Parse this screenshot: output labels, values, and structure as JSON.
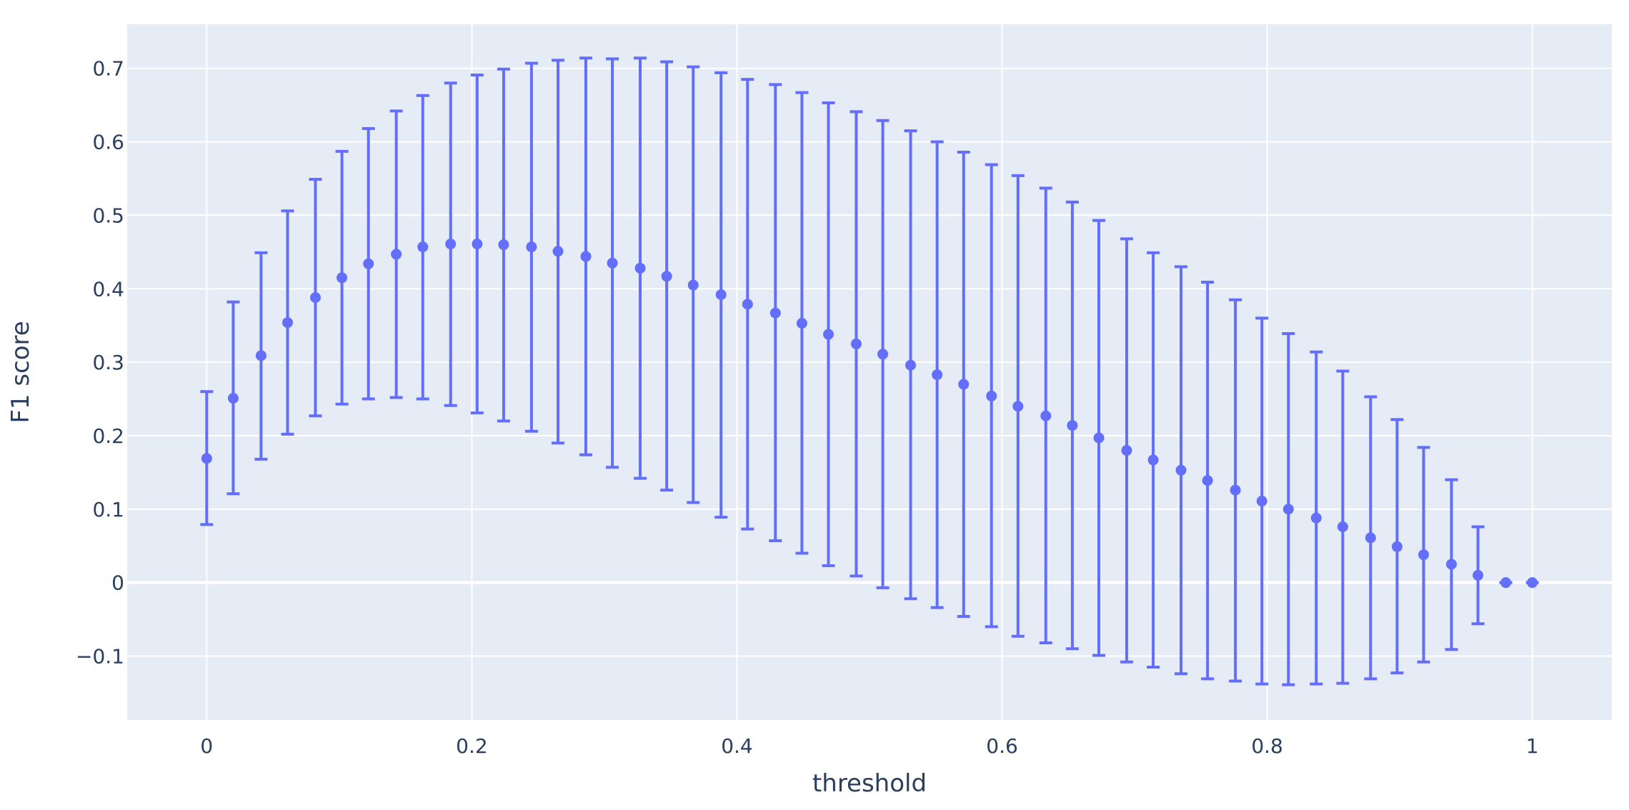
{
  "chart_data": {
    "type": "scatter",
    "title": "",
    "xlabel": "threshold",
    "ylabel": "F1 score",
    "xlim": [
      -0.06,
      1.06
    ],
    "ylim": [
      -0.187,
      0.76
    ],
    "x_ticks": [
      0,
      0.2,
      0.4,
      0.6,
      0.8,
      1
    ],
    "x_tick_labels": [
      "0",
      "0.2",
      "0.4",
      "0.6",
      "0.8",
      "1"
    ],
    "y_ticks": [
      -0.1,
      0,
      0.1,
      0.2,
      0.3,
      0.4,
      0.5,
      0.6,
      0.7
    ],
    "y_tick_labels": [
      "−0.1",
      "0",
      "0.1",
      "0.2",
      "0.3",
      "0.4",
      "0.5",
      "0.6",
      "0.7"
    ],
    "grid": true,
    "colors": {
      "plot_bg": "#e5ecf6",
      "grid": "#ffffff",
      "marker": "#636efa",
      "text": "#2a3f5f"
    },
    "points": [
      {
        "x": 0.0,
        "y": 0.169,
        "lo": 0.079,
        "hi": 0.26
      },
      {
        "x": 0.02,
        "y": 0.251,
        "lo": 0.121,
        "hi": 0.382
      },
      {
        "x": 0.041,
        "y": 0.309,
        "lo": 0.168,
        "hi": 0.449
      },
      {
        "x": 0.061,
        "y": 0.354,
        "lo": 0.202,
        "hi": 0.506
      },
      {
        "x": 0.082,
        "y": 0.388,
        "lo": 0.227,
        "hi": 0.549
      },
      {
        "x": 0.102,
        "y": 0.415,
        "lo": 0.243,
        "hi": 0.587
      },
      {
        "x": 0.122,
        "y": 0.434,
        "lo": 0.25,
        "hi": 0.618
      },
      {
        "x": 0.143,
        "y": 0.447,
        "lo": 0.252,
        "hi": 0.642
      },
      {
        "x": 0.163,
        "y": 0.457,
        "lo": 0.25,
        "hi": 0.663
      },
      {
        "x": 0.184,
        "y": 0.461,
        "lo": 0.241,
        "hi": 0.68
      },
      {
        "x": 0.204,
        "y": 0.461,
        "lo": 0.231,
        "hi": 0.691
      },
      {
        "x": 0.224,
        "y": 0.46,
        "lo": 0.22,
        "hi": 0.699
      },
      {
        "x": 0.245,
        "y": 0.457,
        "lo": 0.206,
        "hi": 0.707
      },
      {
        "x": 0.265,
        "y": 0.451,
        "lo": 0.19,
        "hi": 0.711
      },
      {
        "x": 0.286,
        "y": 0.444,
        "lo": 0.174,
        "hi": 0.714
      },
      {
        "x": 0.306,
        "y": 0.435,
        "lo": 0.157,
        "hi": 0.713
      },
      {
        "x": 0.327,
        "y": 0.428,
        "lo": 0.142,
        "hi": 0.714
      },
      {
        "x": 0.347,
        "y": 0.417,
        "lo": 0.126,
        "hi": 0.709
      },
      {
        "x": 0.367,
        "y": 0.405,
        "lo": 0.109,
        "hi": 0.702
      },
      {
        "x": 0.388,
        "y": 0.392,
        "lo": 0.089,
        "hi": 0.694
      },
      {
        "x": 0.408,
        "y": 0.379,
        "lo": 0.073,
        "hi": 0.685
      },
      {
        "x": 0.429,
        "y": 0.367,
        "lo": 0.057,
        "hi": 0.678
      },
      {
        "x": 0.449,
        "y": 0.353,
        "lo": 0.04,
        "hi": 0.667
      },
      {
        "x": 0.469,
        "y": 0.338,
        "lo": 0.023,
        "hi": 0.653
      },
      {
        "x": 0.49,
        "y": 0.325,
        "lo": 0.009,
        "hi": 0.641
      },
      {
        "x": 0.51,
        "y": 0.311,
        "lo": -0.007,
        "hi": 0.629
      },
      {
        "x": 0.531,
        "y": 0.296,
        "lo": -0.022,
        "hi": 0.615
      },
      {
        "x": 0.551,
        "y": 0.283,
        "lo": -0.034,
        "hi": 0.6
      },
      {
        "x": 0.571,
        "y": 0.27,
        "lo": -0.046,
        "hi": 0.586
      },
      {
        "x": 0.592,
        "y": 0.254,
        "lo": -0.06,
        "hi": 0.569
      },
      {
        "x": 0.612,
        "y": 0.24,
        "lo": -0.073,
        "hi": 0.554
      },
      {
        "x": 0.633,
        "y": 0.227,
        "lo": -0.082,
        "hi": 0.537
      },
      {
        "x": 0.653,
        "y": 0.214,
        "lo": -0.09,
        "hi": 0.518
      },
      {
        "x": 0.673,
        "y": 0.197,
        "lo": -0.099,
        "hi": 0.493
      },
      {
        "x": 0.694,
        "y": 0.18,
        "lo": -0.108,
        "hi": 0.468
      },
      {
        "x": 0.714,
        "y": 0.167,
        "lo": -0.115,
        "hi": 0.449
      },
      {
        "x": 0.735,
        "y": 0.153,
        "lo": -0.124,
        "hi": 0.43
      },
      {
        "x": 0.755,
        "y": 0.139,
        "lo": -0.131,
        "hi": 0.409
      },
      {
        "x": 0.776,
        "y": 0.126,
        "lo": -0.134,
        "hi": 0.385
      },
      {
        "x": 0.796,
        "y": 0.111,
        "lo": -0.138,
        "hi": 0.36
      },
      {
        "x": 0.816,
        "y": 0.1,
        "lo": -0.139,
        "hi": 0.339
      },
      {
        "x": 0.837,
        "y": 0.088,
        "lo": -0.138,
        "hi": 0.314
      },
      {
        "x": 0.857,
        "y": 0.076,
        "lo": -0.137,
        "hi": 0.288
      },
      {
        "x": 0.878,
        "y": 0.061,
        "lo": -0.131,
        "hi": 0.253
      },
      {
        "x": 0.898,
        "y": 0.049,
        "lo": -0.123,
        "hi": 0.222
      },
      {
        "x": 0.918,
        "y": 0.038,
        "lo": -0.108,
        "hi": 0.184
      },
      {
        "x": 0.939,
        "y": 0.025,
        "lo": -0.091,
        "hi": 0.14
      },
      {
        "x": 0.959,
        "y": 0.01,
        "lo": -0.056,
        "hi": 0.076
      },
      {
        "x": 0.98,
        "y": 0.0,
        "lo": 0.0,
        "hi": 0.0
      },
      {
        "x": 1.0,
        "y": 0.0,
        "lo": 0.0,
        "hi": 0.0
      }
    ]
  }
}
